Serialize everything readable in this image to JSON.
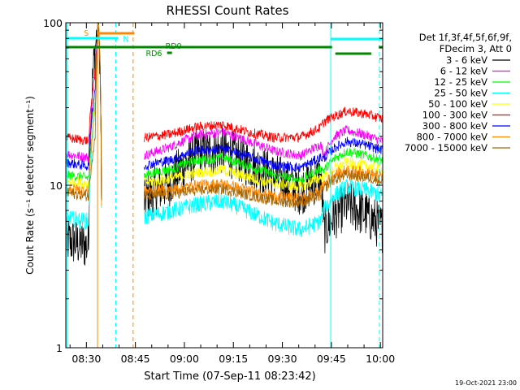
{
  "chart_data": {
    "type": "line",
    "title": "RHESSI Count Rates",
    "xlabel": "Start Time (07-Sep-11 08:23:42)",
    "ylabel": "Count Rate (s⁻¹ detector segment⁻¹)",
    "yscale": "log",
    "ylim": [
      1,
      100
    ],
    "xlim_minutes": [
      0,
      97
    ],
    "x_ticks": [
      {
        "label": "08:30",
        "minute": 6.3
      },
      {
        "label": "08:45",
        "minute": 21.3
      },
      {
        "label": "09:00",
        "minute": 36.3
      },
      {
        "label": "09:15",
        "minute": 51.3
      },
      {
        "label": "09:30",
        "minute": 66.3
      },
      {
        "label": "09:45",
        "minute": 81.3
      },
      {
        "label": "10:00",
        "minute": 96.3
      }
    ],
    "y_ticks": [
      {
        "label": "1",
        "value": 1
      },
      {
        "label": "10",
        "value": 10
      },
      {
        "label": "100",
        "value": 100
      }
    ],
    "legend_header": [
      "Det 1f,3f,4f,5f,6f,9f,",
      "FDecim 3, Att 0"
    ],
    "series": [
      {
        "name": "3 - 6 keV",
        "color": "#000000",
        "x": [
          0,
          7,
          9,
          10,
          11,
          12,
          24,
          32,
          40,
          48,
          56,
          64,
          72,
          78,
          79,
          82,
          86,
          92,
          97
        ],
        "y": [
          4.6,
          4.2,
          70,
          100,
          0,
          0,
          8.2,
          10.5,
          15.5,
          16.4,
          13.6,
          11.2,
          9.2,
          11.2,
          5.2,
          6.4,
          7.6,
          6.6,
          5.4
        ]
      },
      {
        "name": "6 - 12 keV",
        "color": "#ff00ff",
        "x": [
          0,
          7,
          9,
          10,
          11,
          12,
          24,
          32,
          40,
          48,
          56,
          64,
          72,
          78,
          79,
          82,
          86,
          92,
          97
        ],
        "y": [
          15.6,
          14.8,
          50,
          100,
          0,
          0,
          15.2,
          17.2,
          20.3,
          21.2,
          18.6,
          16.2,
          15.2,
          17.8,
          15.4,
          19.8,
          21.8,
          20.3,
          18.6
        ]
      },
      {
        "name": "12 - 25 keV",
        "color": "#00ff00",
        "x": [
          0,
          7,
          9,
          10,
          11,
          12,
          24,
          32,
          40,
          48,
          56,
          64,
          72,
          78,
          79,
          82,
          86,
          92,
          97
        ],
        "y": [
          11.6,
          11.1,
          40,
          100,
          0,
          0,
          11.6,
          12.5,
          14.2,
          14.8,
          13.1,
          11.5,
          10.8,
          12.6,
          12.4,
          14.4,
          16.2,
          15.2,
          14.2
        ]
      },
      {
        "name": "25 - 50 keV",
        "color": "#00ffff",
        "x": [
          0,
          7,
          9,
          10,
          11,
          12,
          24,
          32,
          40,
          48,
          56,
          64,
          72,
          78,
          79,
          82,
          86,
          92,
          97
        ],
        "y": [
          6.3,
          6.0,
          30,
          100,
          0,
          0,
          6.4,
          6.9,
          7.6,
          8.0,
          6.9,
          5.8,
          5.3,
          6.0,
          7.0,
          8.6,
          9.8,
          9.3,
          8.6
        ]
      },
      {
        "name": "50 - 100 keV",
        "color": "#ffff00",
        "x": [
          0,
          7,
          9,
          10,
          11,
          12,
          24,
          32,
          40,
          48,
          56,
          64,
          72,
          78,
          79,
          82,
          86,
          92,
          97
        ],
        "y": [
          10.6,
          10.2,
          30,
          100,
          0,
          0,
          10.4,
          11.0,
          12.0,
          12.4,
          11.2,
          10.2,
          9.8,
          11.2,
          11.0,
          12.6,
          13.8,
          13.2,
          12.4
        ]
      },
      {
        "name": "100 - 300 keV",
        "color": "#ff0000",
        "x": [
          0,
          7,
          9,
          10,
          11,
          12,
          24,
          32,
          40,
          48,
          56,
          64,
          72,
          78,
          79,
          82,
          86,
          92,
          97
        ],
        "y": [
          19.6,
          18.8,
          50,
          100,
          0,
          0,
          19.6,
          20.6,
          22.8,
          23.6,
          21.2,
          19.6,
          19.8,
          22.6,
          24.6,
          26.4,
          28.6,
          27.4,
          25.6
        ]
      },
      {
        "name": "300 - 800 keV",
        "color": "#0000ff",
        "x": [
          0,
          7,
          9,
          10,
          11,
          12,
          24,
          32,
          40,
          48,
          56,
          64,
          72,
          78,
          79,
          82,
          86,
          92,
          97
        ],
        "y": [
          13.8,
          13.1,
          40,
          100,
          0,
          0,
          13.2,
          14.3,
          16.4,
          16.8,
          15.0,
          13.3,
          12.8,
          14.8,
          14.6,
          16.8,
          18.6,
          17.6,
          16.4
        ]
      },
      {
        "name": "800 - 7000 keV",
        "color": "#ff8800",
        "x": [
          0,
          7,
          9,
          10,
          11,
          12,
          24,
          32,
          40,
          48,
          56,
          64,
          72,
          78,
          79,
          82,
          86,
          92,
          97
        ],
        "y": [
          9.6,
          9.2,
          30,
          100,
          0,
          0,
          9.2,
          9.4,
          10.0,
          10.2,
          9.3,
          8.6,
          8.3,
          9.2,
          10.2,
          11.6,
          12.4,
          12.0,
          11.2
        ]
      },
      {
        "name": "7000 - 15000 keV",
        "color": "#aa6600",
        "x": [
          0,
          7,
          9,
          10,
          11,
          12,
          24,
          32,
          40,
          48,
          56,
          64,
          72,
          78,
          79,
          82,
          86,
          92,
          97
        ],
        "y": [
          9.0,
          8.6,
          20,
          100,
          0,
          0,
          8.6,
          8.8,
          9.3,
          9.5,
          8.7,
          8.0,
          7.8,
          8.6,
          9.5,
          10.8,
          11.6,
          11.2,
          10.6
        ]
      }
    ],
    "markers": [
      {
        "label": "S",
        "color": "#ff8800"
      },
      {
        "label": "N",
        "color": "#00ffff"
      },
      {
        "label": "RD0",
        "color": "#008800"
      },
      {
        "label": "RD6",
        "color": "#008800"
      }
    ],
    "timestamp": "19-Oct-2021 23:00"
  }
}
